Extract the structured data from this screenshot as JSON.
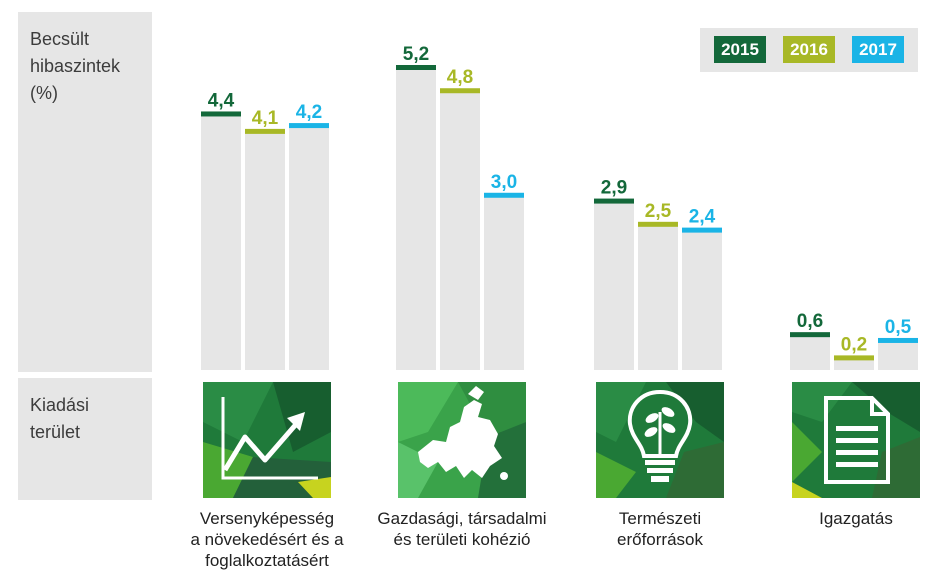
{
  "colors": {
    "y2015": "#13683a",
    "y2016": "#a8b826",
    "y2017": "#1ab4e6",
    "bar": "#e6e6e6",
    "panel": "#e6e6e6"
  },
  "side": {
    "ylabel": "Becsült\nhibaszintek\n(%)",
    "area_label": "Kiadási\nterület"
  },
  "legend": [
    "2015",
    "2016",
    "2017"
  ],
  "chart_data": {
    "type": "bar",
    "ylabel": "Becsült hibaszintek (%)",
    "ylim": [
      0,
      5.6
    ],
    "categories": [
      "Versenyképesség\na növekedésért és a\nfoglalkoztatásért",
      "Gazdasági, társadalmi\nés területi kohézió",
      "Természeti\nerőforrások",
      "Igazgatás"
    ],
    "series": [
      {
        "name": "2015",
        "values": [
          4.4,
          5.2,
          2.9,
          0.6
        ],
        "labels": [
          "4,4",
          "5,2",
          "2,9",
          "0,6"
        ]
      },
      {
        "name": "2016",
        "values": [
          4.1,
          4.8,
          2.5,
          0.2
        ],
        "labels": [
          "4,1",
          "4,8",
          "2,5",
          "0,2"
        ]
      },
      {
        "name": "2017",
        "values": [
          4.2,
          3.0,
          2.4,
          0.5
        ],
        "labels": [
          "4,2",
          "3,0",
          "2,4",
          "0,5"
        ]
      }
    ],
    "legend_position": "top-right",
    "icons": [
      "growth-chart-icon",
      "europe-map-icon",
      "lightbulb-plant-icon",
      "document-icon"
    ]
  }
}
